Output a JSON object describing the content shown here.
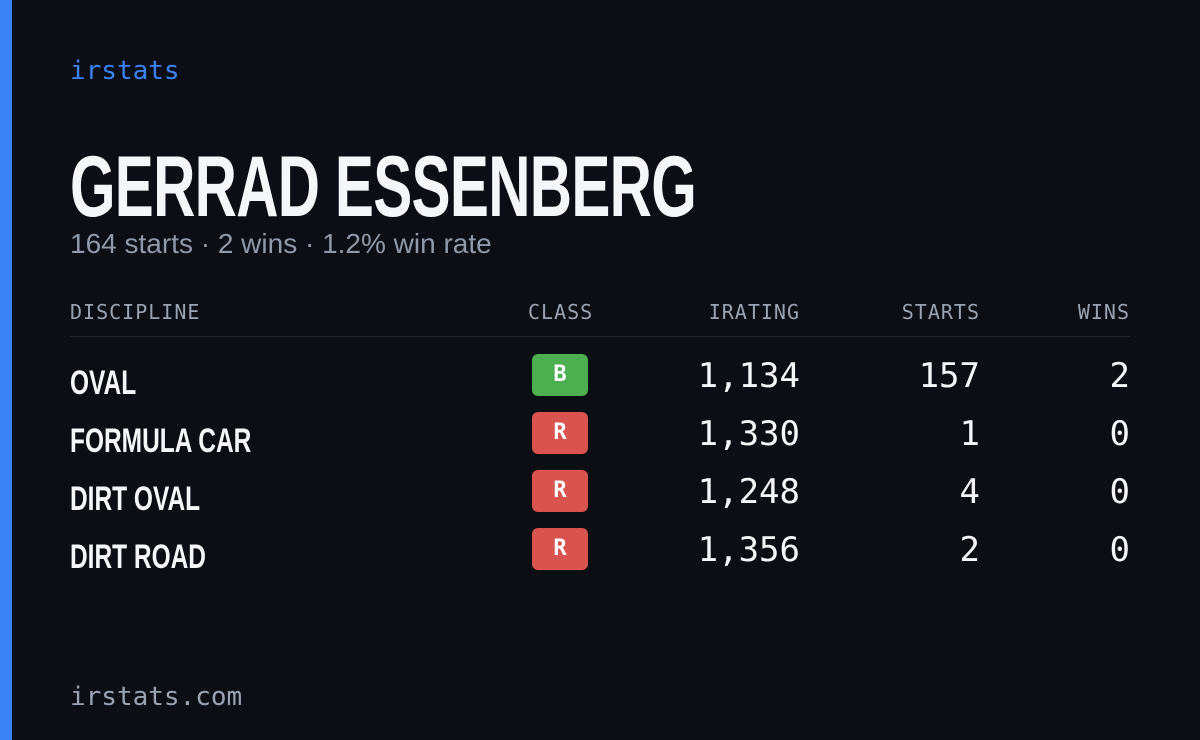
{
  "brand": "irstats",
  "driver": {
    "name": "GERRAD ESSENBERG",
    "summary": "164 starts · 2 wins · 1.2% win rate"
  },
  "table": {
    "columns": [
      "DISCIPLINE",
      "CLASS",
      "IRATING",
      "STARTS",
      "WINS"
    ],
    "rows": [
      {
        "discipline": "OVAL",
        "class": "B",
        "class_color": "#4caf50",
        "irating": "1,134",
        "starts": "157",
        "wins": "2"
      },
      {
        "discipline": "FORMULA CAR",
        "class": "R",
        "class_color": "#d9534f",
        "irating": "1,330",
        "starts": "1",
        "wins": "0"
      },
      {
        "discipline": "DIRT OVAL",
        "class": "R",
        "class_color": "#d9534f",
        "irating": "1,248",
        "starts": "4",
        "wins": "0"
      },
      {
        "discipline": "DIRT ROAD",
        "class": "R",
        "class_color": "#d9534f",
        "irating": "1,356",
        "starts": "2",
        "wins": "0"
      }
    ]
  },
  "footer": "irstats.com"
}
